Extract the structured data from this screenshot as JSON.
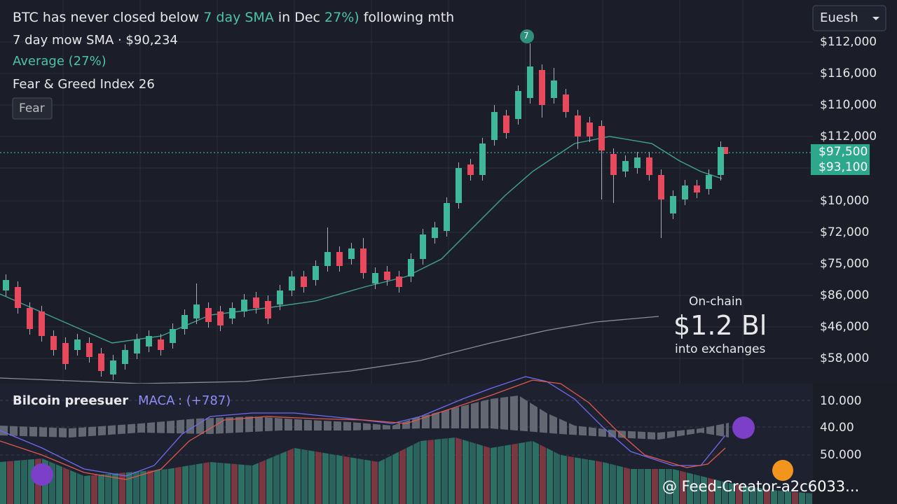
{
  "header": {
    "headline": [
      "BTC has never closed below ",
      "7 day SMA",
      " in Dec ",
      "27%)",
      " following mth"
    ],
    "sma_label": "7 day mow SMA · $90,234",
    "average": "Average (27%)",
    "fear_greed": "Fear & Greed Index 26",
    "fear_badge": "Fear"
  },
  "dropdown": "Euesh",
  "price_axis": [
    "$112,000",
    "$116,000",
    "$110,000",
    "$112,000",
    "$10,000",
    "$72,000",
    "$75,000",
    "$86,000",
    "$46,000",
    "$58,000"
  ],
  "price_tags": [
    "$97,500",
    "$93,100"
  ],
  "peak_marker": "7",
  "annotation": {
    "top": "On-chain",
    "amount": "$1.2 Bl",
    "bottom": "into exchanges"
  },
  "indicator": {
    "name": "Bilcoin preesuer",
    "macd": "MACA",
    "value": ": (+787)"
  },
  "indicator_axis": [
    "10.000",
    "40.00",
    "50.000"
  ],
  "watermark": "@ Feed-Creator-a2c6033..."
}
